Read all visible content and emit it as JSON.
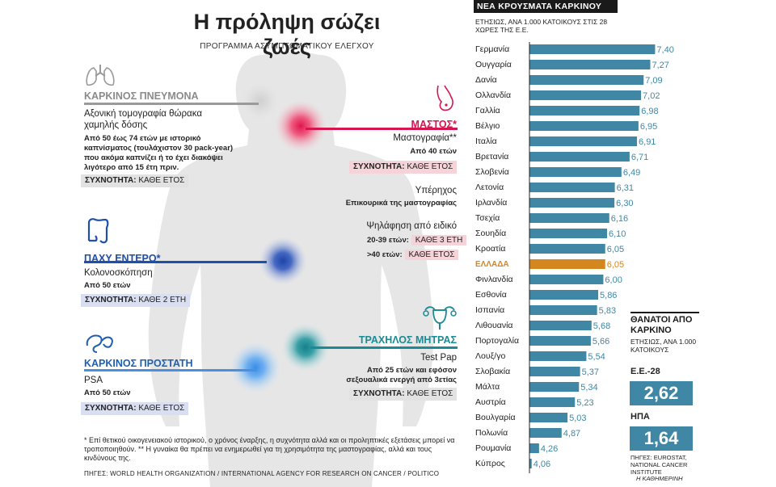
{
  "header": {
    "title": "Η πρόληψη σώζει ζωές",
    "subtitle": "ΠΡΟΓΡΑΜΜΑ ΑΣΥΜΠΤΩΜΑΤΙΚΟΥ ΕΛΕΓΧΟΥ"
  },
  "lung": {
    "label": "ΚΑΡΚΙΝΟΣ ΠΝΕΥΜΟΝΑ",
    "test": "Αξονική τομογραφία θώρακα χαμηλής δόσης",
    "criteria": "Από 50 έως 74 ετών με ιστορικό καπνίσματος (τουλάχιστον 30 pack-year) που ακόμα καπνίζει ή το έχει διακόψει λιγότερο από 15 έτη πριν.",
    "freq_label": "ΣΥΧΝΟΤΗΤΑ:",
    "freq_value": "ΚΑΘΕ ΕΤΟΣ"
  },
  "breast": {
    "label": "ΜΑΣΤΟΣ*",
    "test": "Μαστογραφία**",
    "age": "Από 40 ετών",
    "freq_label": "ΣΥΧΝΟΤΗΤΑ:",
    "freq_value": "ΚΑΘΕ ΕΤΟΣ",
    "ultrasound": "Υπέρηχος",
    "ultrasound_note": "Επικουρικά της μαστογραφίας",
    "palpation": "Ψηλάφηση από ειδικό",
    "age_1": "20-39 ετών:",
    "freq_1": "ΚΑΘΕ 3 ΕΤΗ",
    "age_2": ">40 ετών:",
    "freq_2": "ΚΑΘΕ ΕΤΟΣ"
  },
  "colon": {
    "label": "ΠΑΧΥ ΕΝΤΕΡΟ*",
    "test": "Κολονοσκόπηση",
    "age": "Από 50 ετών",
    "freq_label": "ΣΥΧΝΟΤΗΤΑ:",
    "freq_value": "ΚΑΘΕ 2 ΕΤΗ"
  },
  "cervix": {
    "label": "ΤΡΑΧΗΛΟΣ ΜΗΤΡΑΣ",
    "test": "Test Pap",
    "criteria": "Από 25 ετών και εφόσον σεξουαλικά ενεργή από 3ετίας",
    "freq_label": "ΣΥΧΝΟΤΗΤΑ:",
    "freq_value": "ΚΑΘΕ ΕΤΟΣ"
  },
  "prostate": {
    "label": "ΚΑΡΚΙΝΟΣ ΠΡΟΣΤΑΤΗ",
    "test": "PSA",
    "age": "Από 50 ετών",
    "freq_label": "ΣΥΧΝΟΤΗΤΑ:",
    "freq_value": "ΚΑΘΕ ΕΤΟΣ"
  },
  "footnote": "* Επί θετικού οικογενειακού ιστορικού, ο χρόνος έναρξης, η συχνότητα αλλά και οι προληπτικές εξετάσεις μπορεί να τροποποιηθούν. ** Η γυναίκα θα πρέπει να ενημερωθεί για τη χρησιμότητα της μαστογραφίας, αλλά και τους κινδύνους της.",
  "sources_left": "ΠΗΓΕΣ: WORLD HEALTH ORGANIZATION / INTERNATIONAL AGENCY FOR RESEARCH ON CANCER / POLITICO",
  "colors": {
    "bar": "#3f87a4",
    "highlight": "#d4861f",
    "lung": "#8a8a8a",
    "breast": "#d6164f",
    "colon": "#1f4fa8",
    "cervix": "#1b8a92",
    "prostate": "#4a8fe0"
  },
  "chart_data": {
    "type": "bar",
    "orientation": "horizontal",
    "title": "ΝΕΑ ΚΡΟΥΣΜΑΤΑ ΚΑΡΚΙΝΟΥ",
    "subtitle": "ΕΤΗΣΙΩΣ, ΑΝΑ 1.000 ΚΑΤΟΙΚΟΥΣ ΣΤΙΣ 28 ΧΩΡΕΣ ΤΗΣ Ε.Ε.",
    "highlight": "ΕΛΛΑΔΑ",
    "xlim": [
      4,
      7.5
    ],
    "categories": [
      "Γερμανία",
      "Ουγγαρία",
      "Δανία",
      "Ολλανδία",
      "Γαλλία",
      "Βέλγιο",
      "Ιταλία",
      "Βρετανία",
      "Σλοβενία",
      "Λετονία",
      "Ιρλανδία",
      "Τσεχία",
      "Σουηδία",
      "Κροατία",
      "ΕΛΛΑΔΑ",
      "Φινλανδία",
      "Εσθονία",
      "Ισπανία",
      "Λιθουανία",
      "Πορτογαλία",
      "Λουξ/γο",
      "Σλοβακία",
      "Μάλτα",
      "Αυστρία",
      "Βουλγαρία",
      "Πολωνία",
      "Ρουμανία",
      "Κύπρος"
    ],
    "values": [
      7.4,
      7.27,
      7.09,
      7.02,
      6.98,
      6.95,
      6.91,
      6.71,
      6.49,
      6.31,
      6.3,
      6.16,
      6.1,
      6.05,
      6.05,
      6.0,
      5.86,
      5.83,
      5.68,
      5.66,
      5.54,
      5.37,
      5.34,
      5.23,
      5.03,
      4.87,
      4.26,
      4.06
    ],
    "value_labels": [
      "7,40",
      "7,27",
      "7,09",
      "7,02",
      "6,98",
      "6,95",
      "6,91",
      "6,71",
      "6,49",
      "6,31",
      "6,30",
      "6,16",
      "6,10",
      "6,05",
      "6,05",
      "6,00",
      "5,86",
      "5,83",
      "5,68",
      "5,66",
      "5,54",
      "5,37",
      "5,34",
      "5,23",
      "5,03",
      "4,87",
      "4,26",
      "4,06"
    ]
  },
  "deaths": {
    "title": "ΘΑΝΑΤΟΙ ΑΠΟ ΚΑΡΚΙΝΟ",
    "subtitle": "ΕΤΗΣΙΩΣ, ΑΝΑ 1.000 ΚΑΤΟΙΚΟΥΣ",
    "eu_label": "Ε.Ε.-28",
    "eu_value": "2,62",
    "usa_label": "ΗΠΑ",
    "usa_value": "1,64",
    "source": "ΠΗΓΕΣ: EUROSTAT, NATIONAL CANCER INSTITUTE",
    "credit": "Η ΚΑΘΗΜΕΡΙΝΗ"
  }
}
